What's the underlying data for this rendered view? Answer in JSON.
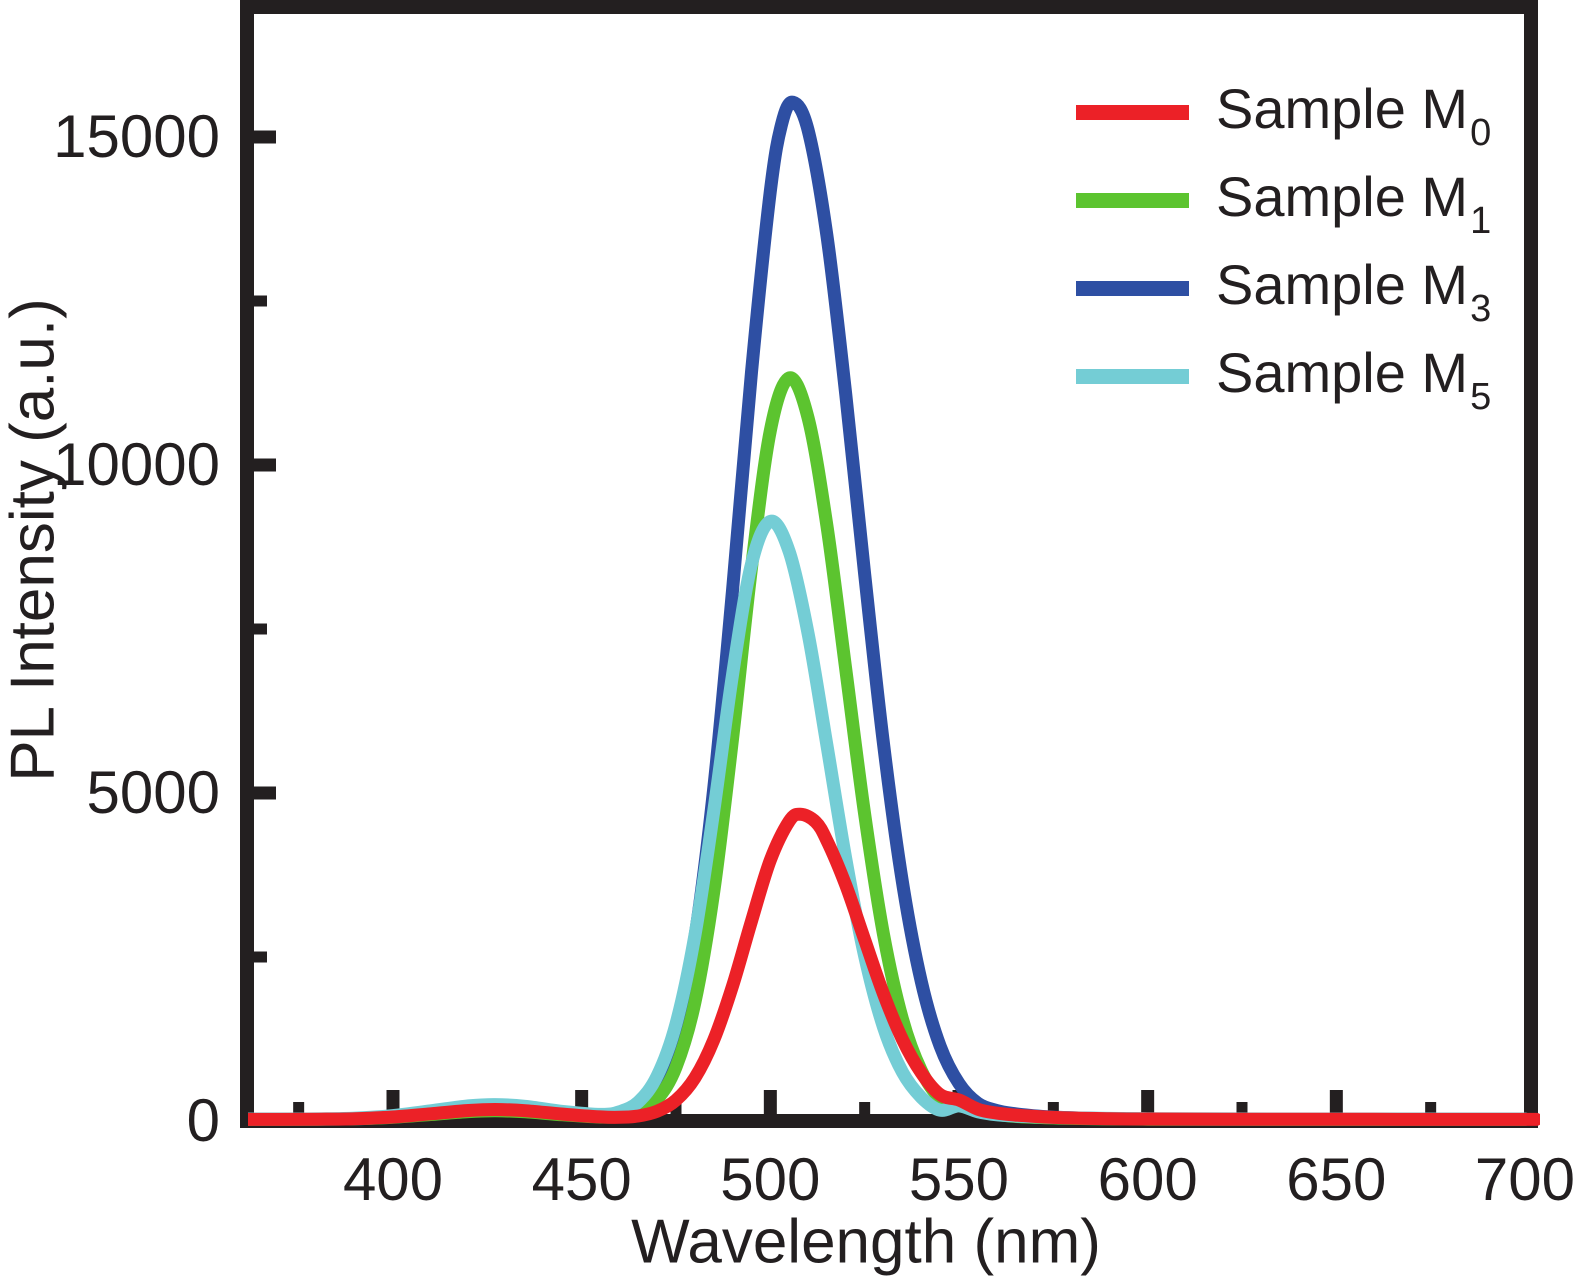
{
  "figure": {
    "background": "#ffffff",
    "frame_color": "#231f20",
    "text_color": "#231f20"
  },
  "chart_data": {
    "type": "line",
    "title": "",
    "xlabel": "Wavelength (nm)",
    "ylabel": "PL Intensity (a.u.)",
    "xlim": [
      360,
      700
    ],
    "ylim": [
      0,
      16900
    ],
    "x_major_ticks": [
      400,
      450,
      500,
      550,
      600,
      650,
      700
    ],
    "x_minor_ticks": [
      375,
      425,
      475,
      525,
      575,
      625,
      675
    ],
    "y_major_ticks": [
      0,
      5000,
      10000,
      15000
    ],
    "y_minor_ticks": [
      2500,
      7500,
      12500
    ],
    "grid": false,
    "legend_position": "top-right",
    "draw_order": [
      "m3",
      "m1",
      "m5",
      "m0"
    ],
    "series": [
      {
        "id": "m0",
        "label": "Sample M",
        "subscript": "0",
        "color": "#ec2127",
        "peak_wavelength_nm": 508,
        "peak_intensity": 4675,
        "points": [
          [
            360,
            25
          ],
          [
            370,
            25
          ],
          [
            380,
            27
          ],
          [
            390,
            35
          ],
          [
            400,
            61
          ],
          [
            410,
            110
          ],
          [
            420,
            160
          ],
          [
            427,
            175
          ],
          [
            435,
            157
          ],
          [
            445,
            105
          ],
          [
            455,
            62
          ],
          [
            460,
            56
          ],
          [
            465,
            76
          ],
          [
            470,
            148
          ],
          [
            475,
            318
          ],
          [
            480,
            657
          ],
          [
            485,
            1233
          ],
          [
            490,
            2061
          ],
          [
            495,
            3048
          ],
          [
            500,
            3975
          ],
          [
            505,
            4570
          ],
          [
            508,
            4675
          ],
          [
            512,
            4560
          ],
          [
            515,
            4275
          ],
          [
            520,
            3594
          ],
          [
            525,
            2760
          ],
          [
            530,
            1937
          ],
          [
            535,
            1244
          ],
          [
            540,
            734
          ],
          [
            545,
            402
          ],
          [
            550,
            320
          ],
          [
            555,
            180
          ],
          [
            560,
            120
          ],
          [
            565,
            90
          ],
          [
            570,
            70
          ],
          [
            575,
            55
          ],
          [
            580,
            45
          ],
          [
            590,
            35
          ],
          [
            600,
            30
          ],
          [
            620,
            28
          ],
          [
            650,
            26
          ],
          [
            680,
            25
          ],
          [
            703,
            25
          ]
        ]
      },
      {
        "id": "m1",
        "label": "Sample M",
        "subscript": "1",
        "color": "#5cc42f",
        "peak_wavelength_nm": 505,
        "peak_intensity": 11327,
        "points": [
          [
            360,
            25
          ],
          [
            370,
            25
          ],
          [
            380,
            27
          ],
          [
            390,
            34
          ],
          [
            400,
            56
          ],
          [
            410,
            99
          ],
          [
            420,
            143
          ],
          [
            427,
            155
          ],
          [
            435,
            140
          ],
          [
            445,
            94
          ],
          [
            455,
            60
          ],
          [
            460,
            68
          ],
          [
            465,
            130
          ],
          [
            470,
            330
          ],
          [
            475,
            820
          ],
          [
            480,
            1808
          ],
          [
            485,
            3490
          ],
          [
            490,
            5836
          ],
          [
            495,
            8434
          ],
          [
            500,
            10522
          ],
          [
            505,
            11327
          ],
          [
            510,
            10716
          ],
          [
            515,
            9076
          ],
          [
            520,
            6881
          ],
          [
            525,
            4672
          ],
          [
            530,
            2845
          ],
          [
            535,
            1556
          ],
          [
            540,
            769
          ],
          [
            545,
            349
          ],
          [
            550,
            250
          ],
          [
            555,
            150
          ],
          [
            560,
            100
          ],
          [
            565,
            70
          ],
          [
            570,
            55
          ],
          [
            575,
            47
          ],
          [
            580,
            40
          ],
          [
            590,
            32
          ],
          [
            600,
            28
          ],
          [
            620,
            26
          ],
          [
            650,
            25
          ],
          [
            700,
            25
          ]
        ]
      },
      {
        "id": "m3",
        "label": "Sample M",
        "subscript": "3",
        "color": "#2e4fa3",
        "peak_wavelength_nm": 506,
        "peak_intensity": 15530,
        "points": [
          [
            360,
            25
          ],
          [
            370,
            25
          ],
          [
            380,
            27
          ],
          [
            390,
            34
          ],
          [
            400,
            59
          ],
          [
            410,
            105
          ],
          [
            420,
            152
          ],
          [
            427,
            165
          ],
          [
            435,
            149
          ],
          [
            445,
            99
          ],
          [
            455,
            72
          ],
          [
            460,
            112
          ],
          [
            465,
            250
          ],
          [
            470,
            600
          ],
          [
            475,
            1370
          ],
          [
            480,
            2800
          ],
          [
            485,
            5065
          ],
          [
            490,
            8100
          ],
          [
            495,
            11415
          ],
          [
            500,
            14170
          ],
          [
            503,
            15200
          ],
          [
            506,
            15530
          ],
          [
            510,
            15105
          ],
          [
            515,
            13500
          ],
          [
            520,
            11070
          ],
          [
            525,
            8330
          ],
          [
            530,
            5750
          ],
          [
            535,
            3645
          ],
          [
            540,
            2125
          ],
          [
            545,
            1143
          ],
          [
            550,
            571
          ],
          [
            555,
            270
          ],
          [
            560,
            160
          ],
          [
            565,
            110
          ],
          [
            570,
            80
          ],
          [
            575,
            60
          ],
          [
            580,
            50
          ],
          [
            590,
            35
          ],
          [
            600,
            30
          ],
          [
            620,
            28
          ],
          [
            650,
            26
          ],
          [
            700,
            25
          ]
        ]
      },
      {
        "id": "m5",
        "label": "Sample M",
        "subscript": "5",
        "color": "#74cdd5",
        "peak_wavelength_nm": 500,
        "peak_intensity": 9140,
        "points": [
          [
            360,
            30
          ],
          [
            370,
            30
          ],
          [
            380,
            32
          ],
          [
            390,
            44
          ],
          [
            400,
            83
          ],
          [
            410,
            155
          ],
          [
            420,
            230
          ],
          [
            427,
            250
          ],
          [
            435,
            224
          ],
          [
            445,
            147
          ],
          [
            455,
            101
          ],
          [
            460,
            140
          ],
          [
            465,
            290
          ],
          [
            470,
            685
          ],
          [
            475,
            1480
          ],
          [
            480,
            2830
          ],
          [
            485,
            4720
          ],
          [
            490,
            6810
          ],
          [
            495,
            8490
          ],
          [
            500,
            9140
          ],
          [
            505,
            8680
          ],
          [
            510,
            7430
          ],
          [
            515,
            5730
          ],
          [
            520,
            3995
          ],
          [
            525,
            2510
          ],
          [
            530,
            1430
          ],
          [
            535,
            745
          ],
          [
            540,
            360
          ],
          [
            545,
            165
          ],
          [
            550,
            230
          ],
          [
            555,
            140
          ],
          [
            560,
            95
          ],
          [
            565,
            75
          ],
          [
            570,
            62
          ],
          [
            580,
            48
          ],
          [
            590,
            40
          ],
          [
            600,
            35
          ],
          [
            620,
            32
          ],
          [
            650,
            30
          ],
          [
            700,
            30
          ]
        ]
      }
    ]
  }
}
